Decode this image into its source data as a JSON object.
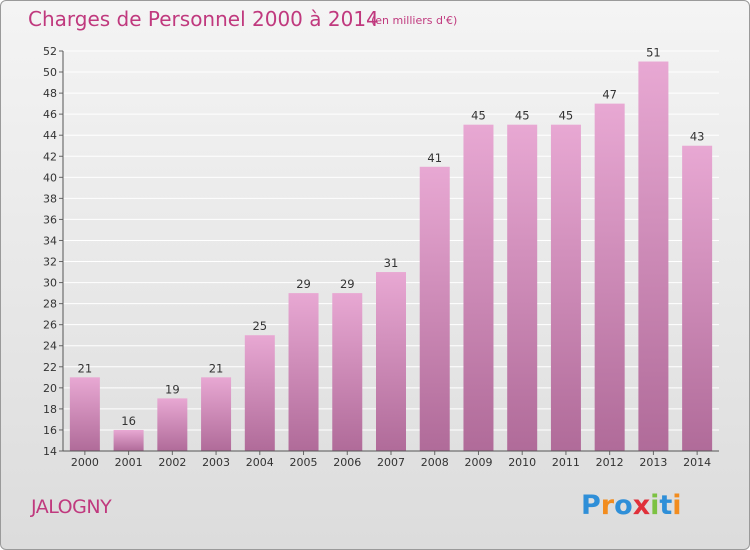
{
  "title": "Charges de Personnel 2000 à 2014",
  "unit": "(en milliers d'€)",
  "commune": "JALOGNY",
  "logo": {
    "letters": [
      "P",
      "r",
      "o",
      "x",
      "i",
      "t",
      "i"
    ],
    "colors": [
      "#2f8fd8",
      "#f28c1e",
      "#2f8fd8",
      "#e0303a",
      "#7cc242",
      "#2f8fd8",
      "#f28c1e"
    ]
  },
  "colors": {
    "bar_light": "#e8a8d3",
    "bar_dark": "#b06b99",
    "title": "#c0397e"
  },
  "chart_data": {
    "type": "bar",
    "title": "Charges de Personnel 2000 à 2014",
    "ylabel": "(en milliers d'€)",
    "xlabel": "",
    "categories": [
      "2000",
      "2001",
      "2002",
      "2003",
      "2004",
      "2005",
      "2006",
      "2007",
      "2008",
      "2009",
      "2010",
      "2011",
      "2012",
      "2013",
      "2014"
    ],
    "values": [
      21,
      16,
      19,
      21,
      25,
      29,
      29,
      31,
      41,
      45,
      45,
      45,
      47,
      51,
      43
    ],
    "ylim": [
      14,
      52
    ],
    "yticks": [
      14,
      16,
      18,
      20,
      22,
      24,
      26,
      28,
      30,
      32,
      34,
      36,
      38,
      40,
      42,
      44,
      46,
      48,
      50,
      52
    ],
    "grid": true
  }
}
